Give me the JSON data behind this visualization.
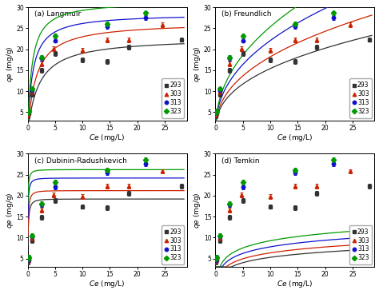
{
  "temps": [
    "293",
    "303",
    "313",
    "323"
  ],
  "colors": [
    "#333333",
    "#cc2200",
    "#1111cc",
    "#009900"
  ],
  "markers": [
    "s",
    "^",
    "o",
    "D"
  ],
  "subplot_labels": [
    "(a) Langmuir",
    "(b) Freundlich",
    "(c) Dubinin-Radushkevich",
    "(d) Temkin"
  ],
  "Ce_points": {
    "293": [
      0.08,
      0.2,
      0.8,
      2.5,
      5.0,
      10.0,
      14.5,
      18.5,
      28.0
    ],
    "303": [
      0.08,
      0.2,
      0.8,
      2.5,
      4.8,
      10.0,
      14.5,
      18.5,
      24.5
    ],
    "313": [
      0.08,
      0.2,
      0.8,
      2.5,
      5.0,
      14.5,
      21.5
    ],
    "323": [
      0.08,
      0.2,
      0.8,
      2.5,
      5.0,
      14.5,
      21.5
    ]
  },
  "qe_points": {
    "293": [
      4.1,
      4.8,
      9.3,
      14.9,
      18.9,
      17.4,
      17.1,
      20.5,
      22.3
    ],
    "303": [
      4.3,
      4.9,
      9.9,
      16.5,
      20.1,
      19.8,
      22.2,
      22.2,
      25.8
    ],
    "313": [
      4.6,
      5.1,
      10.2,
      17.8,
      22.1,
      25.5,
      27.5
    ],
    "323": [
      4.9,
      5.3,
      10.5,
      18.1,
      23.2,
      26.0,
      28.6
    ]
  },
  "langmuir_params": {
    "293": {
      "qmax": 22.8,
      "KL": 0.5
    },
    "303": {
      "qmax": 26.5,
      "KL": 0.65
    },
    "313": {
      "qmax": 28.5,
      "KL": 1.1
    },
    "323": {
      "qmax": 31.5,
      "KL": 1.3
    }
  },
  "freundlich_params": {
    "293": {
      "Kf": 6.2,
      "n": 0.395
    },
    "303": {
      "Kf": 7.0,
      "n": 0.415
    },
    "313": {
      "Kf": 8.2,
      "n": 0.43
    },
    "323": {
      "Kf": 9.1,
      "n": 0.445
    }
  },
  "dr_params": {
    "293": {
      "qmax": 19.2,
      "beta": 0.09
    },
    "303": {
      "qmax": 21.2,
      "beta": 0.075
    },
    "313": {
      "qmax": 24.2,
      "beta": 0.055
    },
    "323": {
      "qmax": 26.2,
      "beta": 0.04
    }
  },
  "temkin_params": {
    "293": {
      "A": 1.8,
      "B": 1350
    },
    "303": {
      "A": 2.3,
      "B": 1220
    },
    "313": {
      "A": 3.2,
      "B": 1100
    },
    "323": {
      "A": 4.2,
      "B": 1000
    }
  },
  "xlim": [
    0,
    29
  ],
  "ylim": [
    3,
    30
  ],
  "yticks": [
    5,
    10,
    15,
    20,
    25,
    30
  ],
  "xticks": [
    0,
    5,
    10,
    15,
    20,
    25
  ],
  "legend_loc_ab": "lower right",
  "legend_loc_cd": "lower right",
  "errorbar_size": 0.55
}
